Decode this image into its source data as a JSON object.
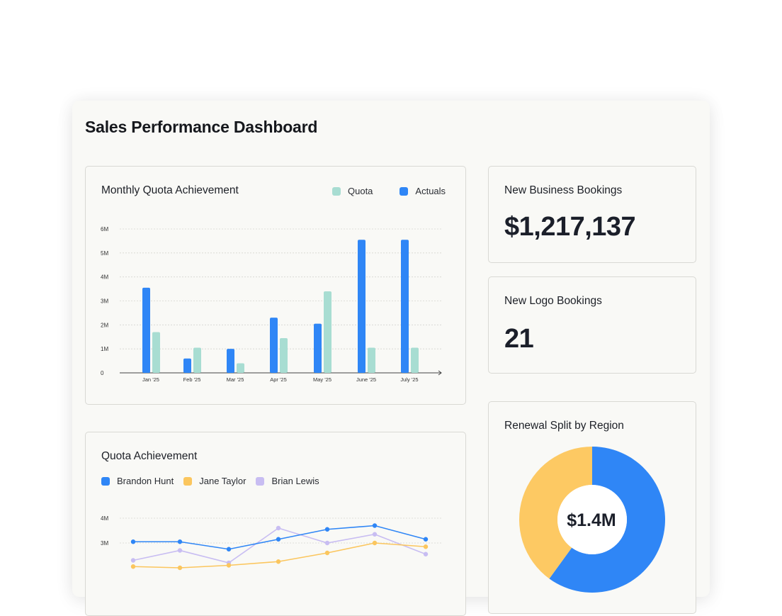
{
  "dashboard": {
    "title": "Sales Performance Dashboard"
  },
  "colors": {
    "quota": "#a8ddd2",
    "actuals": "#2f86f6",
    "brandon": "#2f86f6",
    "jane": "#fbc65e",
    "brian": "#c8bdf2",
    "donut_blue": "#2f86f6",
    "donut_yellow": "#fdc963"
  },
  "monthly_chart": {
    "title": "Monthly Quota Achievement",
    "legend": {
      "quota": "Quota",
      "actuals": "Actuals"
    }
  },
  "new_business": {
    "title": "New Business Bookings",
    "value": "$1,217,137"
  },
  "new_logo": {
    "title": "New Logo Bookings",
    "value": "21"
  },
  "renewal": {
    "title": "Renewal Split by Region",
    "center_value": "$1.4M"
  },
  "quota_line": {
    "title": "Quota Achievement",
    "legend": {
      "brandon": "Brandon Hunt",
      "jane": "Jane Taylor",
      "brian": "Brian Lewis"
    }
  },
  "chart_data": [
    {
      "type": "bar",
      "title": "Monthly Quota Achievement",
      "categories": [
        "Jan '25",
        "Feb '25",
        "Mar '25",
        "Apr '25",
        "May '25",
        "June '25",
        "July '25"
      ],
      "series": [
        {
          "name": "Actuals",
          "values": [
            3.55,
            0.6,
            1.0,
            2.3,
            2.05,
            5.55,
            5.55
          ]
        },
        {
          "name": "Quota",
          "values": [
            1.7,
            1.05,
            0.4,
            1.45,
            3.4,
            1.05,
            1.05
          ]
        }
      ],
      "yticks": [
        "0",
        "1M",
        "2M",
        "3M",
        "4M",
        "5M",
        "6M"
      ],
      "ylim": [
        0,
        6
      ],
      "grid": true,
      "legend": "top-right"
    },
    {
      "type": "pie",
      "title": "Renewal Split by Region",
      "slices": [
        {
          "value": 60,
          "color": "#2f86f6"
        },
        {
          "value": 40,
          "color": "#fdc963"
        }
      ],
      "center_label": "$1.4M"
    },
    {
      "type": "line",
      "title": "Quota Achievement",
      "visible_yticks": [
        "4M",
        "3M"
      ],
      "y_values_in": "M",
      "series": [
        {
          "name": "Brandon Hunt",
          "values": [
            3.05,
            3.05,
            2.75,
            3.15,
            3.55,
            3.7,
            3.15
          ]
        },
        {
          "name": "Jane Taylor",
          "values": [
            2.05,
            2.0,
            2.1,
            2.25,
            2.6,
            3.0,
            2.85
          ]
        },
        {
          "name": "Brian Lewis",
          "values": [
            2.3,
            2.7,
            2.2,
            3.6,
            3.0,
            3.35,
            2.55
          ]
        }
      ],
      "legend": "top-left"
    }
  ]
}
